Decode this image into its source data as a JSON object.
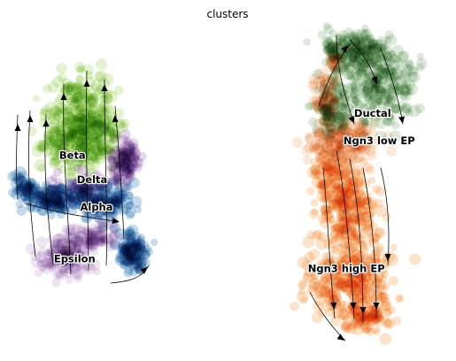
{
  "chart_data": {
    "type": "scatter",
    "title": "clusters",
    "xlabel": "",
    "ylabel": "",
    "grid": false,
    "axes_visible": false,
    "overlay": "velocity streamlines with arrows",
    "clusters": [
      {
        "name": "Beta",
        "color": "#b5dc7e",
        "label_x": 0.145,
        "label_y": 0.59
      },
      {
        "name": "Delta",
        "color": "#b18cc8",
        "label_x": 0.19,
        "label_y": 0.515
      },
      {
        "name": "Alpha",
        "color": "#4f95c6",
        "label_x": 0.2,
        "label_y": 0.43
      },
      {
        "name": "Epsilon",
        "color": "#cdb5da",
        "label_x": 0.15,
        "label_y": 0.27
      },
      {
        "name": "Ductal",
        "color": "#9ec497",
        "label_x": 0.83,
        "label_y": 0.72
      },
      {
        "name": "Ngn3 low EP",
        "color": "#f3c094",
        "label_x": 0.845,
        "label_y": 0.635
      },
      {
        "name": "Ngn3 high EP",
        "color": "#f5b16c",
        "label_x": 0.77,
        "label_y": 0.24
      }
    ]
  }
}
